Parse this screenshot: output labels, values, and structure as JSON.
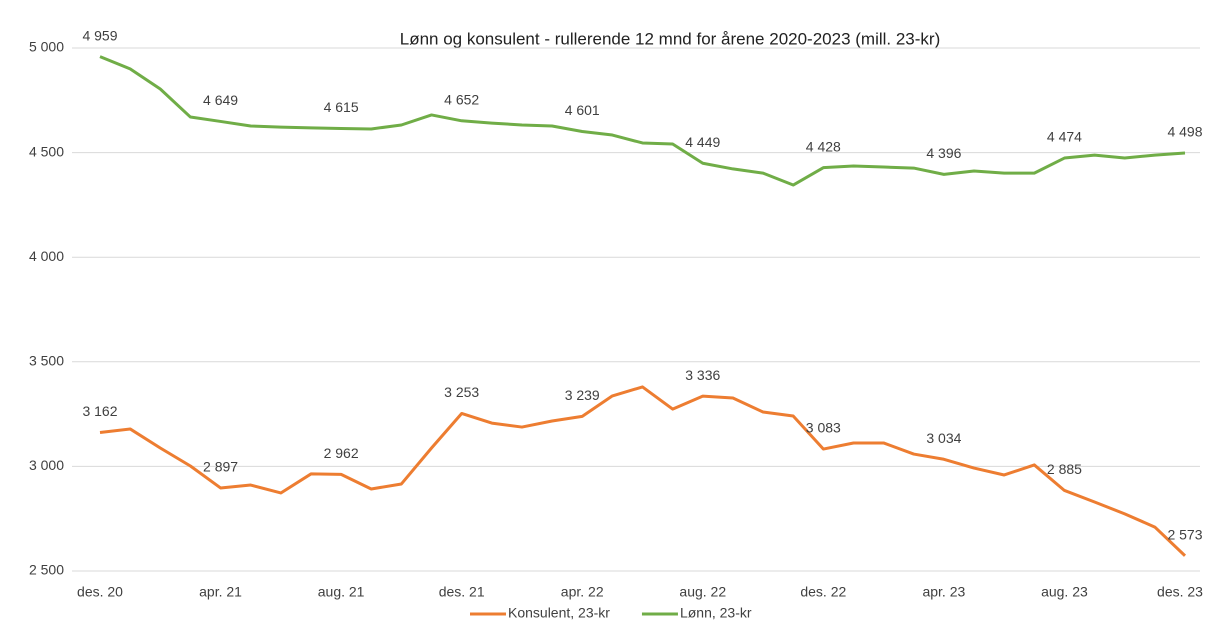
{
  "chart_data": {
    "type": "line",
    "title": "Lønn og konsulent - rullerende 12 mnd for årene 2020-2023 (mill. 23-kr)",
    "categories": [
      "des. 20",
      null,
      null,
      null,
      "apr. 21",
      null,
      null,
      null,
      "aug. 21",
      null,
      null,
      null,
      "des. 21",
      null,
      null,
      null,
      "apr. 22",
      null,
      null,
      null,
      "aug. 22",
      null,
      null,
      null,
      "des. 22",
      null,
      null,
      null,
      "apr. 23",
      null,
      null,
      null,
      "aug. 23",
      null,
      null,
      null,
      "des. 23"
    ],
    "ylim": [
      2500,
      5000
    ],
    "yticks": [
      {
        "value": 2500,
        "label": "2 500"
      },
      {
        "value": 3000,
        "label": "3 000"
      },
      {
        "value": 3500,
        "label": "3 500"
      },
      {
        "value": 4000,
        "label": "4 000"
      },
      {
        "value": 4500,
        "label": "4 500"
      },
      {
        "value": 5000,
        "label": "5 000"
      }
    ],
    "grid": true,
    "legend": "bottom",
    "series": [
      {
        "name": "Konsulent, 23-kr",
        "color": "#ed7d31",
        "values": [
          3162,
          3179,
          3088,
          3002,
          2897,
          2911,
          2873,
          2964,
          2962,
          2892,
          2916,
          3088,
          3253,
          3207,
          3188,
          3217,
          3239,
          3337,
          3380,
          3274,
          3336,
          3327,
          3260,
          3241,
          3083,
          3112,
          3112,
          3059,
          3034,
          2992,
          2959,
          3007,
          2885,
          2830,
          2773,
          2710,
          2573
        ],
        "value_labels": [
          "3 162",
          null,
          null,
          null,
          "2 897",
          null,
          null,
          null,
          "2 962",
          null,
          null,
          null,
          "3 253",
          null,
          null,
          null,
          "3 239",
          null,
          null,
          null,
          "3 336",
          null,
          null,
          null,
          "3 083",
          null,
          null,
          null,
          "3 034",
          null,
          null,
          null,
          "2 885",
          null,
          null,
          null,
          "2 573"
        ]
      },
      {
        "name": "Lønn, 23-kr",
        "color": "#70ad47",
        "values": [
          4959,
          4900,
          4804,
          4670,
          4649,
          4627,
          4622,
          4618,
          4615,
          4613,
          4632,
          4680,
          4652,
          4641,
          4632,
          4627,
          4601,
          4584,
          4546,
          4541,
          4449,
          4422,
          4402,
          4345,
          4428,
          4436,
          4431,
          4426,
          4396,
          4412,
          4402,
          4402,
          4474,
          4488,
          4474,
          4488,
          4498
        ],
        "value_labels": [
          "4 959",
          null,
          null,
          null,
          "4 649",
          null,
          null,
          null,
          "4 615",
          null,
          null,
          null,
          "4 652",
          null,
          null,
          null,
          "4 601",
          null,
          null,
          null,
          "4 449",
          null,
          null,
          null,
          "4 428",
          null,
          null,
          null,
          "4 396",
          null,
          null,
          null,
          "4 474",
          null,
          null,
          null,
          "4 498"
        ]
      }
    ]
  }
}
